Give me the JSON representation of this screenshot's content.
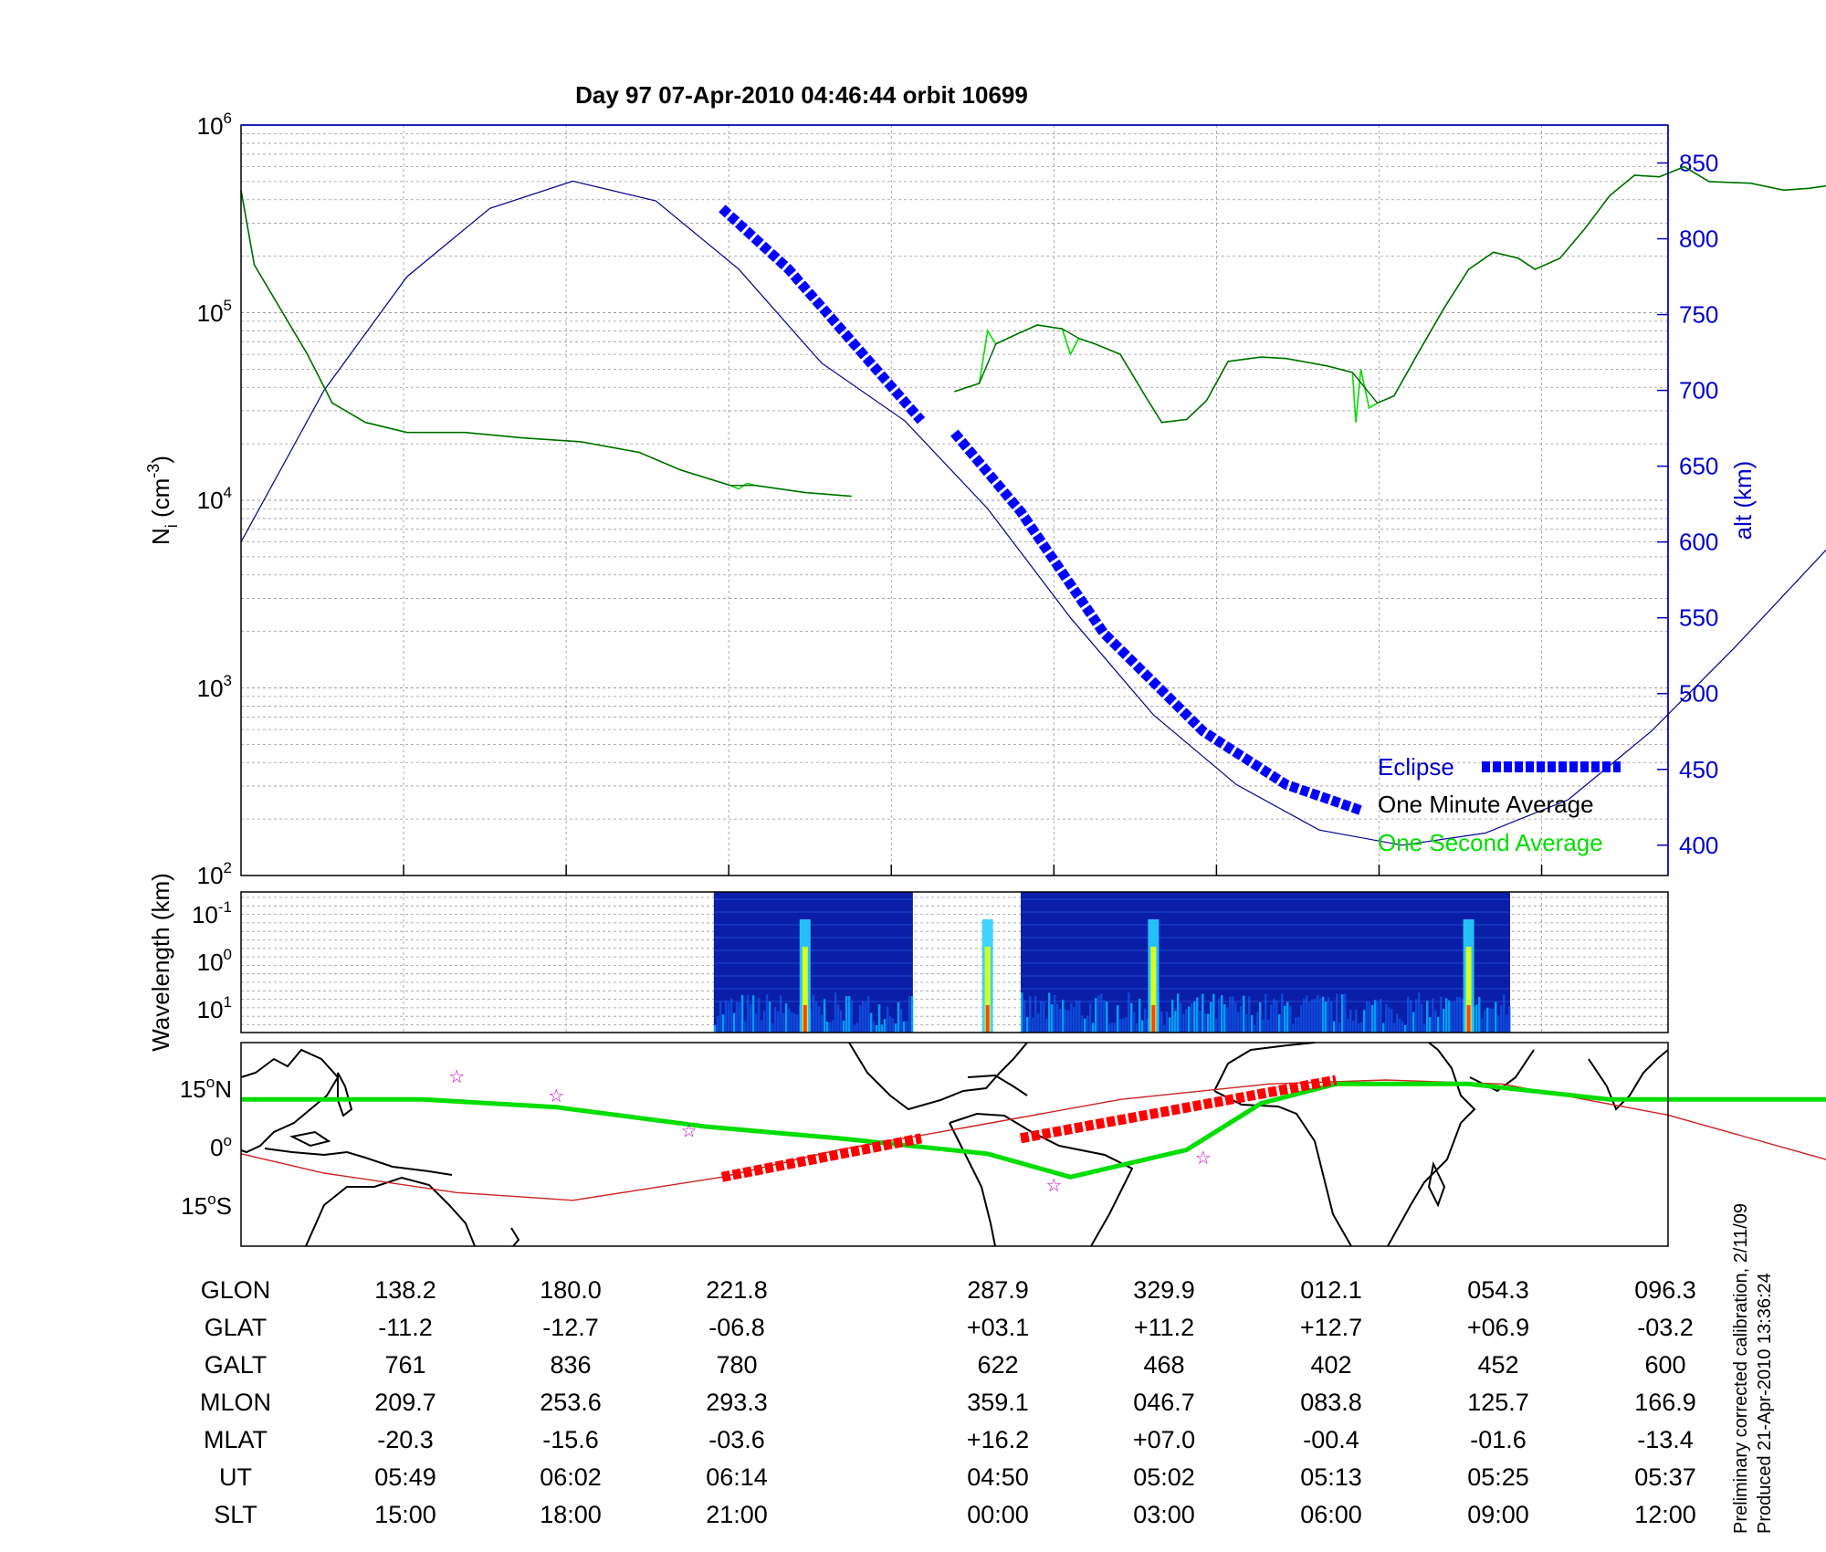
{
  "title": "Day 97  07-Apr-2010 04:46:44   orbit 10699",
  "colors": {
    "eclipse": "#0000ff",
    "one_minute": "#000000",
    "one_second": "#00dd00",
    "altitude": "#00008b",
    "map_ground_track": "#00dd00",
    "magnetic_equator": "#cc2222",
    "map_eclipse": "#ff0000",
    "right_axis": "#0000cc"
  },
  "top_panel": {
    "ylabel_main": "N",
    "ylabel_sub": "i",
    "ylabel_tail": " (cm",
    "ylabel_exp": "-3",
    "ylabel_close": ")",
    "yticks": [
      {
        "base": "10",
        "exp": "2"
      },
      {
        "base": "10",
        "exp": "3"
      },
      {
        "base": "10",
        "exp": "4"
      },
      {
        "base": "10",
        "exp": "5"
      },
      {
        "base": "10",
        "exp": "6"
      }
    ],
    "right_label": "alt (km)",
    "right_ticks": [
      "400",
      "450",
      "500",
      "550",
      "600",
      "650",
      "700",
      "750",
      "800",
      "850"
    ],
    "legend": {
      "eclipse": "Eclipse",
      "one_minute": "One Minute Average",
      "one_second": "One Second Average"
    }
  },
  "chart_data": [
    {
      "type": "line",
      "yscale": "log",
      "ylim": [
        100,
        1000000
      ],
      "y2lim": [
        380,
        875
      ],
      "xlabel": "",
      "ylabel": "Ni (cm-3)",
      "y2label": "alt (km)",
      "series": [
        {
          "name": "One Minute Average",
          "segments": [
            [
              [
                0,
                450000
              ],
              [
                0.08,
                180000
              ],
              [
                0.4,
                60000
              ],
              [
                0.55,
                33000
              ],
              [
                0.75,
                26000
              ],
              [
                1.0,
                23000
              ],
              [
                1.35,
                23000
              ],
              [
                1.7,
                21500
              ],
              [
                2.05,
                20500
              ],
              [
                2.4,
                18000
              ],
              [
                2.65,
                14500
              ],
              [
                2.95,
                12000
              ],
              [
                3.1,
                12000
              ],
              [
                3.4,
                11000
              ],
              [
                3.68,
                10500
              ]
            ],
            [
              [
                4.3,
                38000
              ],
              [
                4.45,
                42000
              ],
              [
                4.55,
                68000
              ],
              [
                4.65,
                75000
              ],
              [
                4.8,
                86000
              ],
              [
                4.95,
                82000
              ],
              [
                5.05,
                73000
              ],
              [
                5.15,
                68000
              ],
              [
                5.3,
                60000
              ],
              [
                5.45,
                36000
              ],
              [
                5.55,
                26000
              ],
              [
                5.7,
                27000
              ],
              [
                5.82,
                34000
              ],
              [
                5.95,
                55000
              ],
              [
                6.15,
                58000
              ],
              [
                6.3,
                57000
              ],
              [
                6.55,
                52000
              ],
              [
                6.7,
                48000
              ],
              [
                6.85,
                33000
              ],
              [
                6.95,
                36000
              ],
              [
                7.1,
                62000
              ],
              [
                7.25,
                105000
              ],
              [
                7.4,
                170000
              ],
              [
                7.55,
                210000
              ],
              [
                7.7,
                195000
              ],
              [
                7.8,
                170000
              ],
              [
                7.95,
                195000
              ],
              [
                8.1,
                280000
              ],
              [
                8.25,
                420000
              ],
              [
                8.4,
                540000
              ],
              [
                8.55,
                530000
              ],
              [
                8.7,
                600000
              ],
              [
                8.85,
                500000
              ],
              [
                9.1,
                490000
              ],
              [
                9.3,
                450000
              ],
              [
                9.45,
                460000
              ],
              [
                9.6,
                480000
              ]
            ]
          ]
        },
        {
          "name": "One Second Average",
          "segments": [
            [
              [
                0,
                450000
              ],
              [
                0.08,
                180000
              ],
              [
                0.4,
                60000
              ],
              [
                0.55,
                33000
              ],
              [
                0.75,
                26000
              ],
              [
                1.0,
                23000
              ],
              [
                1.35,
                23000
              ],
              [
                1.7,
                21500
              ],
              [
                2.05,
                20500
              ],
              [
                2.4,
                18000
              ],
              [
                2.65,
                14500
              ],
              [
                2.95,
                12000
              ],
              [
                3.0,
                11500
              ],
              [
                3.05,
                12300
              ],
              [
                3.1,
                12000
              ],
              [
                3.4,
                11000
              ],
              [
                3.68,
                10500
              ]
            ],
            [
              [
                4.3,
                38000
              ],
              [
                4.45,
                42000
              ],
              [
                4.5,
                80000
              ],
              [
                4.55,
                68000
              ],
              [
                4.65,
                75000
              ],
              [
                4.8,
                86000
              ],
              [
                4.95,
                82000
              ],
              [
                5.0,
                60000
              ],
              [
                5.05,
                73000
              ],
              [
                5.15,
                68000
              ],
              [
                5.3,
                60000
              ],
              [
                5.45,
                36000
              ],
              [
                5.55,
                26000
              ],
              [
                5.7,
                27000
              ],
              [
                5.82,
                34000
              ],
              [
                5.95,
                55000
              ],
              [
                6.15,
                58000
              ],
              [
                6.3,
                57000
              ],
              [
                6.55,
                52000
              ],
              [
                6.7,
                48000
              ],
              [
                6.72,
                26000
              ],
              [
                6.75,
                50000
              ],
              [
                6.8,
                31000
              ],
              [
                6.85,
                33000
              ],
              [
                6.95,
                36000
              ],
              [
                7.1,
                62000
              ],
              [
                7.25,
                105000
              ],
              [
                7.4,
                170000
              ],
              [
                7.55,
                210000
              ],
              [
                7.7,
                195000
              ],
              [
                7.8,
                170000
              ],
              [
                7.95,
                195000
              ],
              [
                8.1,
                280000
              ],
              [
                8.25,
                420000
              ],
              [
                8.4,
                540000
              ],
              [
                8.55,
                530000
              ],
              [
                8.7,
                600000
              ],
              [
                8.85,
                500000
              ],
              [
                9.1,
                490000
              ],
              [
                9.3,
                450000
              ],
              [
                9.45,
                460000
              ],
              [
                9.6,
                480000
              ]
            ]
          ]
        },
        {
          "name": "alt (km)",
          "axis": "right",
          "points": [
            [
              0,
              600
            ],
            [
              0.5,
              700
            ],
            [
              1.0,
              775
            ],
            [
              1.5,
              820
            ],
            [
              2.0,
              838
            ],
            [
              2.5,
              825
            ],
            [
              3.0,
              780
            ],
            [
              3.5,
              718
            ],
            [
              4.0,
              680
            ],
            [
              4.5,
              622
            ],
            [
              5.0,
              550
            ],
            [
              5.5,
              486
            ],
            [
              6.0,
              440
            ],
            [
              6.5,
              410
            ],
            [
              7.0,
              400
            ],
            [
              7.5,
              408
            ],
            [
              8.0,
              430
            ],
            [
              8.5,
              475
            ],
            [
              9.0,
              530
            ],
            [
              9.6,
              600
            ]
          ]
        },
        {
          "name": "Eclipse",
          "axis": "right",
          "segments": [
            [
              [
                2.9,
                820
              ],
              [
                3.3,
                780
              ],
              [
                3.7,
                730
              ],
              [
                4.1,
                680
              ]
            ],
            [
              [
                4.3,
                672
              ],
              [
                4.7,
                620
              ],
              [
                5.2,
                540
              ],
              [
                5.8,
                475
              ],
              [
                6.3,
                440
              ],
              [
                6.75,
                423
              ]
            ]
          ]
        }
      ]
    },
    {
      "type": "heatmap",
      "ylabel": "Wavelength (km)",
      "yticks": [
        {
          "base": "10",
          "exp": "-1"
        },
        {
          "base": "10",
          "exp": "0"
        },
        {
          "base": "10",
          "exp": "1"
        }
      ],
      "data_intervals": [
        [
          2.85,
          4.05
        ],
        [
          4.7,
          7.65
        ]
      ],
      "bright_columns": [
        3.4,
        4.5,
        5.5,
        7.4
      ]
    },
    {
      "type": "line",
      "title": "",
      "yticks": [
        {
          "value": "15",
          "unit": "N"
        },
        {
          "value": "0",
          "unit": ""
        },
        {
          "value": "15",
          "unit": "S"
        }
      ],
      "series": [
        {
          "name": "ground-track",
          "points": [
            [
              0,
              11
            ],
            [
              1.1,
              11
            ],
            [
              1.9,
              9
            ],
            [
              2.8,
              4
            ],
            [
              3.6,
              1
            ],
            [
              4.5,
              -3
            ],
            [
              5.0,
              -9
            ],
            [
              5.7,
              -2
            ],
            [
              6.15,
              10
            ],
            [
              6.6,
              15
            ],
            [
              7.4,
              15
            ],
            [
              8.25,
              11
            ],
            [
              9.6,
              11
            ]
          ]
        },
        {
          "name": "magnetic-equator",
          "points": [
            [
              0,
              -3
            ],
            [
              0.5,
              -8
            ],
            [
              1.3,
              -13
            ],
            [
              2.0,
              -15
            ],
            [
              2.9,
              -9
            ],
            [
              3.6,
              -2
            ],
            [
              4.4,
              4
            ],
            [
              5.3,
              11
            ],
            [
              6.2,
              15
            ],
            [
              6.9,
              16
            ],
            [
              7.6,
              15
            ],
            [
              8.6,
              7
            ],
            [
              9.6,
              -5
            ]
          ]
        },
        {
          "name": "eclipse",
          "segments": [
            [
              [
                2.9,
                -9
              ],
              [
                4.1,
                1
              ]
            ],
            [
              [
                4.7,
                1
              ],
              [
                6.6,
                16
              ]
            ]
          ]
        }
      ],
      "markers": [
        [
          1.3,
          17
        ],
        [
          1.9,
          12
        ],
        [
          2.7,
          3
        ],
        [
          4.9,
          -11
        ],
        [
          5.8,
          -4
        ]
      ]
    }
  ],
  "table": {
    "headers": [
      "GLON",
      "GLAT",
      "GALT",
      "MLON",
      "MLAT",
      "UT",
      "SLT"
    ],
    "columns": [
      [
        "138.2",
        "-11.2",
        "761",
        "209.7",
        "-20.3",
        "05:49",
        "15:00"
      ],
      [
        "180.0",
        "-12.7",
        "836",
        "253.6",
        "-15.6",
        "06:02",
        "18:00"
      ],
      [
        "221.8",
        "-06.8",
        "780",
        "293.3",
        "-03.6",
        "06:14",
        "21:00"
      ],
      [
        "287.9",
        "+03.1",
        "622",
        "359.1",
        "+16.2",
        "04:50",
        "00:00"
      ],
      [
        "329.9",
        "+11.2",
        "468",
        "046.7",
        "+07.0",
        "05:02",
        "03:00"
      ],
      [
        "012.1",
        "+12.7",
        "402",
        "083.8",
        "-00.4",
        "05:13",
        "06:00"
      ],
      [
        "054.3",
        "+06.9",
        "452",
        "125.7",
        "-01.6",
        "05:25",
        "09:00"
      ],
      [
        "096.3",
        "-03.2",
        "600",
        "166.9",
        "-13.4",
        "05:37",
        "12:00"
      ]
    ]
  },
  "footnote": {
    "line1": "Preliminary corrected calibration, 2/11/09",
    "line2": "Produced 21-Apr-2010 13:36:24"
  }
}
